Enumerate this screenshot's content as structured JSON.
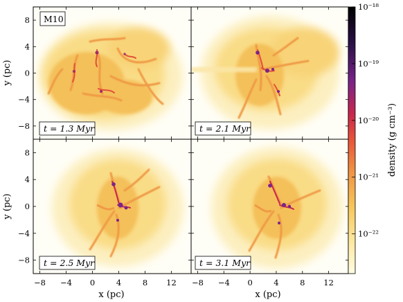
{
  "figure": {
    "model_label": "M10",
    "x_axis_label": "x (pc)",
    "y_axis_label": "y (pc)",
    "colorbar_label": "density (g cm⁻³)"
  },
  "chart_data": {
    "type": "heatmap",
    "xlim": [
      -9,
      15
    ],
    "ylim": [
      -10,
      10
    ],
    "x_ticks": [
      -8,
      -4,
      0,
      4,
      8,
      12
    ],
    "y_ticks": [
      -8,
      -4,
      0,
      4,
      8
    ],
    "x_tick_labels": [
      "−8",
      "−4",
      "0",
      "4",
      "8",
      "12"
    ],
    "y_tick_labels": [
      "−8",
      "−4",
      "0",
      "4",
      "8"
    ],
    "colorbar": {
      "scale": "log",
      "range": [
        -22.7,
        -18
      ],
      "ticks": [
        -22,
        -21,
        -20,
        -19,
        -18
      ],
      "tick_labels": [
        "10⁻²²",
        "10⁻²¹",
        "10⁻²⁰",
        "10⁻¹⁹",
        "10⁻¹⁸"
      ],
      "colors": [
        "#fffce0",
        "#fde8a0",
        "#f6c659",
        "#f19443",
        "#e8543a",
        "#c9264d",
        "#7a238a",
        "#2b1148",
        "#000000"
      ]
    },
    "panels": [
      {
        "time_label": "t = 1.3 Myr",
        "time_myr": 1.3
      },
      {
        "time_label": "t = 2.1 Myr",
        "time_myr": 2.1
      },
      {
        "time_label": "t = 2.5 Myr",
        "time_myr": 2.5
      },
      {
        "time_label": "t = 3.1 Myr",
        "time_myr": 3.1
      }
    ]
  }
}
